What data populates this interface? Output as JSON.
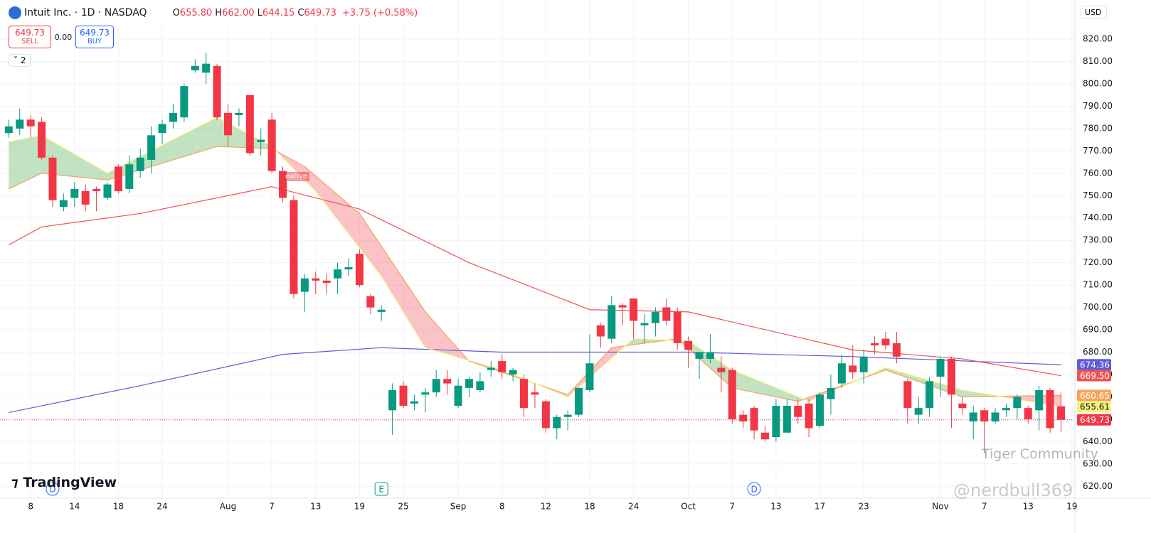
{
  "header": {
    "symbol": "Intuit Inc. · 1D · NASDAQ",
    "ohlc": [
      {
        "key": "O",
        "value": "655.80"
      },
      {
        "key": "H",
        "value": "662.00"
      },
      {
        "key": "L",
        "value": "644.15"
      },
      {
        "key": "C",
        "value": "649.73"
      }
    ],
    "change": "+3.75 (+0.58%)",
    "sell": {
      "price": "649.73",
      "label": "SELL"
    },
    "spread": "0.00",
    "buy": {
      "price": "649.73",
      "label": "BUY"
    },
    "indicators": "2",
    "currency": "USD",
    "logo": "TradingView",
    "watermark": "Tiger Community",
    "handle": "@nerdbull369",
    "signal": "eative"
  },
  "chart_data": {
    "type": "candlestick",
    "up_color": "#089981",
    "down_color": "#f23645",
    "ohlc": [
      [
        778,
        784,
        776,
        781
      ],
      [
        780,
        789,
        777,
        784
      ],
      [
        784,
        786,
        776,
        781
      ],
      [
        783,
        785,
        766,
        767
      ],
      [
        767,
        768,
        745,
        748
      ],
      [
        745,
        751,
        743,
        748
      ],
      [
        749,
        756,
        745,
        753
      ],
      [
        752,
        755,
        743,
        746
      ],
      [
        753,
        754,
        743,
        752
      ],
      [
        749,
        756,
        748,
        755
      ],
      [
        763,
        764,
        751,
        752
      ],
      [
        753,
        768,
        751,
        764
      ],
      [
        761,
        771,
        758,
        767
      ],
      [
        766,
        781,
        760,
        777
      ],
      [
        778,
        784,
        773,
        782
      ],
      [
        783,
        791,
        780,
        787
      ],
      [
        785,
        800,
        783,
        799
      ],
      [
        806,
        811,
        805,
        808
      ],
      [
        805,
        814,
        800,
        809
      ],
      [
        808,
        809,
        784,
        785
      ],
      [
        787,
        791,
        772,
        777
      ],
      [
        786,
        789,
        781,
        787
      ],
      [
        795,
        795,
        768,
        769
      ],
      [
        774,
        780,
        768,
        775
      ],
      [
        784,
        787,
        760,
        761
      ],
      [
        761,
        763,
        747,
        749
      ],
      [
        748,
        750,
        704,
        706
      ],
      [
        707,
        715,
        698,
        713
      ],
      [
        713,
        716,
        706,
        712
      ],
      [
        712,
        715,
        706,
        711
      ],
      [
        713,
        720,
        706,
        717
      ],
      [
        717,
        722,
        714,
        718
      ],
      [
        724,
        726,
        709,
        710
      ],
      [
        705,
        706,
        697,
        700
      ],
      [
        698,
        701,
        694,
        699
      ],
      [
        654,
        666,
        643,
        663
      ],
      [
        665,
        667,
        655,
        656
      ],
      [
        657,
        661,
        654,
        658
      ],
      [
        661,
        664,
        653,
        662
      ],
      [
        662,
        672,
        660,
        668
      ],
      [
        668,
        672,
        661,
        666
      ],
      [
        656,
        668,
        655,
        665
      ],
      [
        664,
        669,
        660,
        668
      ],
      [
        663,
        671,
        662,
        667
      ],
      [
        672,
        676,
        669,
        673
      ],
      [
        676,
        679,
        668,
        671
      ],
      [
        670,
        673,
        667,
        672
      ],
      [
        668,
        670,
        651,
        655
      ],
      [
        662,
        666,
        655,
        661
      ],
      [
        658,
        659,
        644,
        646
      ],
      [
        646,
        652,
        641,
        651
      ],
      [
        651,
        654,
        645,
        652
      ],
      [
        652,
        664,
        651,
        664
      ],
      [
        663,
        688,
        662,
        675
      ],
      [
        692,
        693,
        682,
        687
      ],
      [
        686,
        705,
        684,
        701
      ],
      [
        701,
        702,
        692,
        700
      ],
      [
        704,
        704,
        686,
        694
      ],
      [
        692,
        697,
        684,
        693
      ],
      [
        693,
        700,
        687,
        698
      ],
      [
        700,
        704,
        692,
        694
      ],
      [
        698,
        700,
        681,
        684
      ],
      [
        685,
        687,
        673,
        681
      ],
      [
        677,
        680,
        668,
        680
      ],
      [
        677,
        688,
        675,
        680
      ],
      [
        673,
        678,
        662,
        671
      ],
      [
        672,
        673,
        648,
        650
      ],
      [
        652,
        654,
        646,
        649
      ],
      [
        655,
        656,
        641,
        645
      ],
      [
        644,
        647,
        640,
        641
      ],
      [
        642,
        659,
        640,
        656
      ],
      [
        644,
        659,
        644,
        656
      ],
      [
        656,
        659,
        648,
        651
      ],
      [
        657,
        659,
        642,
        646
      ],
      [
        647,
        662,
        646,
        661
      ],
      [
        659,
        670,
        652,
        664
      ],
      [
        666,
        679,
        664,
        675
      ],
      [
        674,
        683,
        668,
        671
      ],
      [
        671,
        681,
        666,
        678
      ],
      [
        684,
        687,
        679,
        683
      ],
      [
        686,
        689,
        681,
        683
      ],
      [
        684,
        689,
        675,
        678
      ],
      [
        667,
        668,
        648,
        655
      ],
      [
        652,
        660,
        648,
        655
      ],
      [
        655,
        669,
        651,
        667
      ],
      [
        669,
        678,
        660,
        677
      ],
      [
        677,
        678,
        646,
        661
      ],
      [
        657,
        660,
        652,
        655
      ],
      [
        649,
        656,
        641,
        653
      ],
      [
        654,
        655,
        635,
        649
      ],
      [
        649,
        655,
        648,
        653
      ],
      [
        654,
        657,
        651,
        655
      ],
      [
        655,
        661,
        650,
        660
      ],
      [
        655,
        656,
        648,
        650
      ],
      [
        654,
        665,
        645,
        663
      ],
      [
        663,
        664,
        644,
        646
      ],
      [
        655.8,
        662,
        644.15,
        649.73
      ]
    ],
    "xticks": [
      {
        "value": 2,
        "label": "8"
      },
      {
        "value": 6,
        "label": "14"
      },
      {
        "value": 10,
        "label": "18"
      },
      {
        "value": 14,
        "label": "24"
      },
      {
        "value": 20,
        "label": "Aug"
      },
      {
        "value": 24,
        "label": "7"
      },
      {
        "value": 28,
        "label": "13"
      },
      {
        "value": 32,
        "label": "19"
      },
      {
        "value": 36,
        "label": "25"
      },
      {
        "value": 41,
        "label": "Sep"
      },
      {
        "value": 45,
        "label": "8"
      },
      {
        "value": 49,
        "label": "12"
      },
      {
        "value": 53,
        "label": "18"
      },
      {
        "value": 57,
        "label": "24"
      },
      {
        "value": 62,
        "label": "Oct"
      },
      {
        "value": 66,
        "label": "7"
      },
      {
        "value": 70,
        "label": "13"
      },
      {
        "value": 74,
        "label": "17"
      },
      {
        "value": 78,
        "label": "23"
      },
      {
        "value": 85,
        "label": "Nov"
      },
      {
        "value": 89,
        "label": "7"
      },
      {
        "value": 93,
        "label": "13"
      },
      {
        "value": 97,
        "label": "19"
      }
    ],
    "xlim": [
      -0.8,
      97.2
    ],
    "ylim": [
      615,
      837.5
    ],
    "yticks": [
      {
        "value": 620,
        "label": "620.00"
      },
      {
        "value": 630,
        "label": "630.00"
      },
      {
        "value": 640,
        "label": "640.00"
      },
      {
        "value": 650,
        "label": "650.00"
      },
      {
        "value": 660,
        "label": "660.00"
      },
      {
        "value": 670,
        "label": "670.00"
      },
      {
        "value": 680,
        "label": "680.00"
      },
      {
        "value": 690,
        "label": "690.00"
      },
      {
        "value": 700,
        "label": "700.00"
      },
      {
        "value": 710,
        "label": "710.00"
      },
      {
        "value": 720,
        "label": "720.00"
      },
      {
        "value": 730,
        "label": "730.00"
      },
      {
        "value": 740,
        "label": "740.00"
      },
      {
        "value": 750,
        "label": "750.00"
      },
      {
        "value": 760,
        "label": "760.00"
      },
      {
        "value": 770,
        "label": "770.00"
      },
      {
        "value": 780,
        "label": "780.00"
      },
      {
        "value": 790,
        "label": "790.00"
      },
      {
        "value": 800,
        "label": "800.00"
      },
      {
        "value": 810,
        "label": "810.00"
      },
      {
        "value": 820,
        "label": "820.00"
      }
    ],
    "grid": true,
    "lines": [
      {
        "color": "#5b5bdc",
        "label_text": "#ffffff",
        "end_label": "674.36",
        "x": [
          0,
          12,
          25,
          34,
          45,
          62,
          77,
          96
        ],
        "values": [
          653,
          665,
          679,
          682,
          680,
          680,
          678,
          674.36
        ]
      },
      {
        "color": "#ef5350",
        "label_text": "#ffffff",
        "end_label": "669.50",
        "x": [
          0,
          3,
          12,
          24,
          32,
          42,
          53,
          62,
          77,
          87,
          96
        ],
        "values": [
          728,
          736,
          742,
          754,
          744,
          720,
          699,
          698,
          681,
          677,
          669.5
        ]
      },
      {
        "color": "#f7a35c",
        "label_text": "#ffffff",
        "end_label": "660.65",
        "x": [
          0,
          3,
          9,
          19,
          24,
          27,
          32,
          38,
          42,
          51,
          55,
          61,
          66,
          72,
          80,
          87,
          96
        ],
        "values": [
          753,
          760,
          757,
          772,
          771,
          763,
          742,
          698,
          676,
          661,
          682,
          686,
          664,
          658,
          672,
          660,
          660.65
        ]
      },
      {
        "color": "#f5f07a",
        "label_text": "#131722",
        "end_label": "655.61",
        "x": [
          0,
          3,
          9,
          19,
          24,
          28,
          34,
          38,
          45,
          51,
          57,
          62,
          66,
          73,
          80,
          87,
          96
        ],
        "values": [
          774,
          777,
          760,
          785,
          772,
          752,
          714,
          682,
          672,
          660,
          686,
          685,
          672,
          658,
          673,
          663,
          655.61
        ]
      }
    ],
    "cloud": {
      "up": "rgba(76,175,80,0.35)",
      "down": "rgba(242,54,69,0.3)"
    },
    "last_price": {
      "value": 649.73,
      "label": "649.73",
      "color": "#f23645"
    },
    "events": [
      {
        "x": 4,
        "label": "D",
        "color": "#2962ff"
      },
      {
        "x": 34,
        "label": "E",
        "color": "#089981"
      },
      {
        "x": 68,
        "label": "D",
        "color": "#2962ff"
      }
    ]
  }
}
